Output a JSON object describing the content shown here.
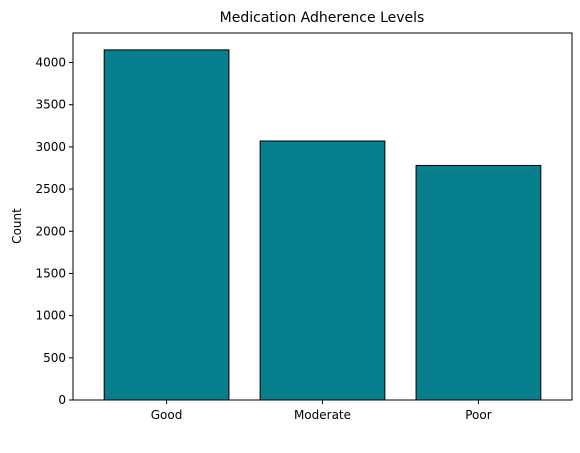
{
  "chart_data": {
    "type": "bar",
    "title": "Medication Adherence Levels",
    "xlabel": "",
    "ylabel": "Count",
    "categories": [
      "Good",
      "Moderate",
      "Poor"
    ],
    "values": [
      4150,
      3070,
      2780
    ],
    "ylim": [
      0,
      4350
    ],
    "yticks": [
      0,
      500,
      1000,
      1500,
      2000,
      2500,
      3000,
      3500,
      4000
    ],
    "bar_color": "#087f8c",
    "bar_edge_color": "#000000",
    "grid": false,
    "legend": "none"
  }
}
